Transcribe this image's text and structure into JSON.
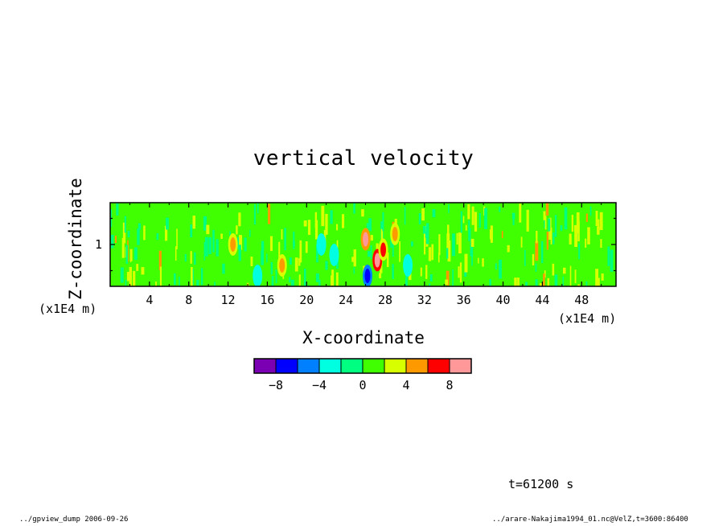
{
  "chart_data": {
    "type": "heatmap",
    "title": "vertical velocity",
    "xlabel": "X-coordinate",
    "ylabel": "Z-coordinate",
    "x_unit": "(x1E4 m)",
    "y_unit": "(x1E4 m)",
    "xlim": [
      0,
      51.5
    ],
    "ylim": [
      0.2,
      1.8
    ],
    "x_ticks": [
      4,
      8,
      12,
      16,
      20,
      24,
      28,
      32,
      36,
      40,
      44,
      48
    ],
    "y_ticks": [
      1
    ],
    "colorbar": {
      "bins": [
        -10,
        -8,
        -6,
        -4,
        -2,
        0,
        2,
        4,
        6,
        8,
        10
      ],
      "tick_labels": [
        "−8",
        "−4",
        "0",
        "4",
        "8"
      ],
      "tick_values": [
        -8,
        -4,
        0,
        4,
        8
      ],
      "colors": [
        "#7b00b4",
        "#0000ff",
        "#0080ff",
        "#00ffe0",
        "#00ff80",
        "#40ff00",
        "#d8ff00",
        "#ff9900",
        "#ff0000",
        "#ff9999"
      ]
    },
    "features": [
      {
        "x": 26.0,
        "z": 1.1,
        "value": 8
      },
      {
        "x": 27.2,
        "z": 0.7,
        "value": 9
      },
      {
        "x": 26.2,
        "z": 0.4,
        "value": -8
      },
      {
        "x": 27.8,
        "z": 0.9,
        "value": 6
      },
      {
        "x": 21.5,
        "z": 1.0,
        "value": -4
      },
      {
        "x": 22.8,
        "z": 0.8,
        "value": -4
      },
      {
        "x": 30.3,
        "z": 0.6,
        "value": -3
      },
      {
        "x": 15.0,
        "z": 0.4,
        "value": -3
      },
      {
        "x": 12.5,
        "z": 1.0,
        "value": 5
      },
      {
        "x": 17.5,
        "z": 0.6,
        "value": 4
      },
      {
        "x": 29.0,
        "z": 1.2,
        "value": 5
      }
    ]
  },
  "annotations": {
    "time": "t=61200 s",
    "footer_left": "../gpview_dump  2006-09-26",
    "footer_right": "../arare-Nakajima1994_01.nc@VelZ,t=3600:86400"
  }
}
